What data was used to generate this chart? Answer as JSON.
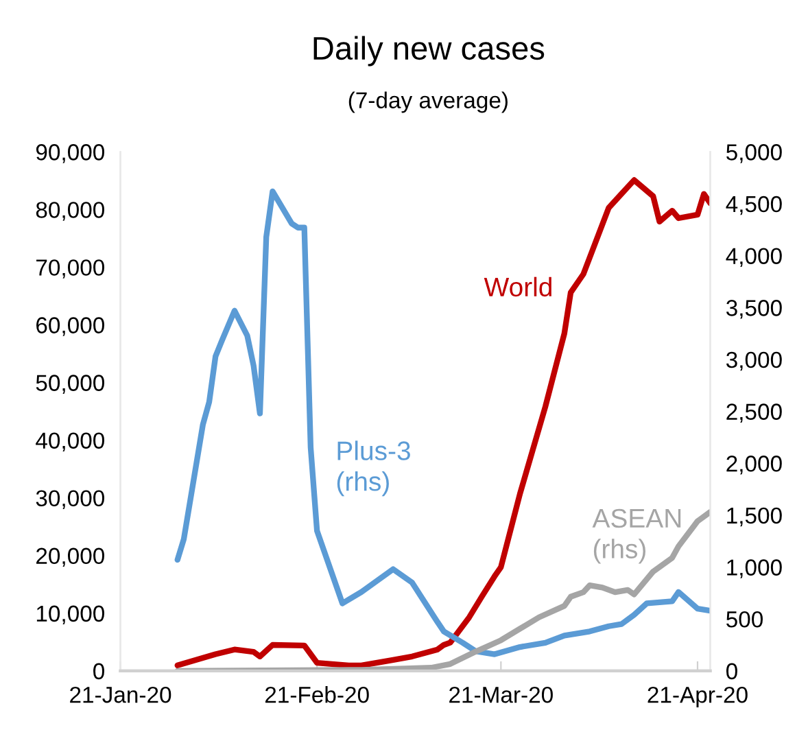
{
  "chart_data": {
    "type": "line",
    "title": "Daily new cases",
    "subtitle": "(7-day average)",
    "xlim": [
      "2020-01-21",
      "2020-04-23"
    ],
    "xticks": [
      {
        "value": "2020-01-21",
        "label": "21-Jan-20"
      },
      {
        "value": "2020-02-21",
        "label": "21-Feb-20"
      },
      {
        "value": "2020-03-21",
        "label": "21-Mar-20"
      },
      {
        "value": "2020-04-21",
        "label": "21-Apr-20"
      }
    ],
    "ylim": [
      0,
      90000
    ],
    "yticks": [
      {
        "value": 0,
        "label": "0"
      },
      {
        "value": 10000,
        "label": "10,000"
      },
      {
        "value": 20000,
        "label": "20,000"
      },
      {
        "value": 30000,
        "label": "30,000"
      },
      {
        "value": 40000,
        "label": "40,000"
      },
      {
        "value": 50000,
        "label": "50,000"
      },
      {
        "value": 60000,
        "label": "60,000"
      },
      {
        "value": 70000,
        "label": "70,000"
      },
      {
        "value": 80000,
        "label": "80,000"
      },
      {
        "value": 90000,
        "label": "90,000"
      }
    ],
    "y2lim": [
      0,
      5000
    ],
    "y2ticks": [
      {
        "value": 0,
        "label": "0"
      },
      {
        "value": 500,
        "label": "500"
      },
      {
        "value": 1000,
        "label": "1,000"
      },
      {
        "value": 1500,
        "label": "1,500"
      },
      {
        "value": 2000,
        "label": "2,000"
      },
      {
        "value": 2500,
        "label": "2,500"
      },
      {
        "value": 3000,
        "label": "3,000"
      },
      {
        "value": 3500,
        "label": "3,500"
      },
      {
        "value": 4000,
        "label": "4,000"
      },
      {
        "value": 4500,
        "label": "4,500"
      },
      {
        "value": 5000,
        "label": "5,000"
      }
    ],
    "grid": false,
    "legend": false,
    "marker": "none",
    "line_style": "solid",
    "series": [
      {
        "name": "World",
        "color": "#c00000",
        "x": [
          "2020-01-30",
          "2020-02-05",
          "2020-02-08",
          "2020-02-11",
          "2020-02-12",
          "2020-02-14",
          "2020-02-19",
          "2020-02-21",
          "2020-02-26",
          "2020-02-28",
          "2020-03-04",
          "2020-03-07",
          "2020-03-11",
          "2020-03-12",
          "2020-03-13",
          "2020-03-16",
          "2020-03-18",
          "2020-03-20",
          "2020-03-21",
          "2020-03-24",
          "2020-03-28",
          "2020-03-31",
          "2020-04-01",
          "2020-04-03",
          "2020-04-07",
          "2020-04-09",
          "2020-04-11",
          "2020-04-14",
          "2020-04-15",
          "2020-04-17",
          "2020-04-18",
          "2020-04-21",
          "2020-04-22",
          "2020-04-23"
        ],
        "values": [
          950,
          2900,
          3700,
          3300,
          2500,
          4500,
          4400,
          1400,
          950,
          950,
          1900,
          2500,
          3700,
          4500,
          4900,
          9300,
          12900,
          16400,
          18000,
          30700,
          45800,
          58500,
          65600,
          68800,
          80300,
          82700,
          85100,
          82300,
          77900,
          79800,
          78500,
          79100,
          82700,
          81100
        ]
      },
      {
        "name": "Plus-3\n(rhs)",
        "color": "#5b9bd5",
        "axis": "y2",
        "x": [
          "2020-01-30",
          "2020-01-31",
          "2020-02-03",
          "2020-02-04",
          "2020-02-05",
          "2020-02-06",
          "2020-02-08",
          "2020-02-10",
          "2020-02-11",
          "2020-02-12",
          "2020-02-13",
          "2020-02-14",
          "2020-02-17",
          "2020-02-18",
          "2020-02-19",
          "2020-02-20",
          "2020-02-21",
          "2020-02-25",
          "2020-02-28",
          "2020-03-04",
          "2020-03-07",
          "2020-03-11",
          "2020-03-12",
          "2020-03-15",
          "2020-03-17",
          "2020-03-20",
          "2020-03-24",
          "2020-03-28",
          "2020-03-31",
          "2020-04-04",
          "2020-04-07",
          "2020-04-09",
          "2020-04-11",
          "2020-04-13",
          "2020-04-17",
          "2020-04-18",
          "2020-04-21",
          "2020-04-23"
        ],
        "values": [
          1070,
          1270,
          2370,
          2590,
          3030,
          3180,
          3470,
          3230,
          2940,
          2480,
          4180,
          4620,
          4310,
          4270,
          4270,
          2150,
          1350,
          650,
          760,
          980,
          850,
          470,
          380,
          270,
          190,
          160,
          230,
          270,
          340,
          380,
          430,
          450,
          540,
          650,
          670,
          760,
          600,
          580
        ]
      },
      {
        "name": "ASEAN\n(rhs)",
        "color": "#a5a5a5",
        "axis": "y2",
        "x": [
          "2020-01-30",
          "2020-02-28",
          "2020-03-10",
          "2020-03-13",
          "2020-03-17",
          "2020-03-21",
          "2020-03-24",
          "2020-03-27",
          "2020-03-31",
          "2020-04-01",
          "2020-04-03",
          "2020-04-04",
          "2020-04-06",
          "2020-04-08",
          "2020-04-10",
          "2020-04-11",
          "2020-04-14",
          "2020-04-17",
          "2020-04-18",
          "2020-04-21",
          "2020-04-23"
        ],
        "values": [
          0,
          10,
          30,
          66,
          185,
          295,
          406,
          516,
          626,
          714,
          758,
          824,
          803,
          758,
          780,
          737,
          957,
          1089,
          1200,
          1442,
          1531
        ]
      }
    ]
  }
}
